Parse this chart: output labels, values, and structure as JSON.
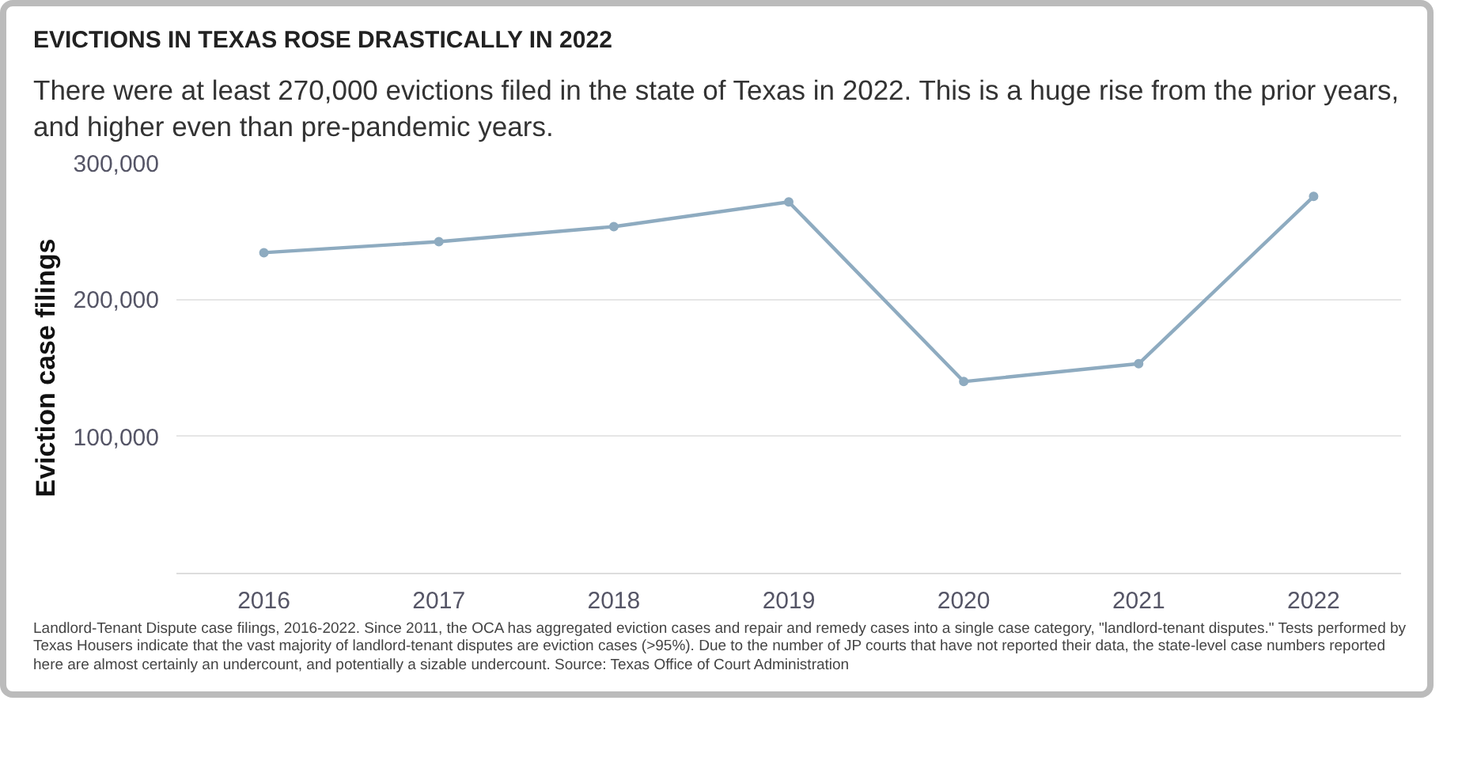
{
  "chart_data": {
    "type": "line",
    "title": "EVICTIONS IN TEXAS ROSE DRASTICALLY IN 2022",
    "subtitle": "There were at least 270,000 evictions filed in the state of Texas in 2022. This is a huge rise from the prior years, and higher even than pre-pandemic years.",
    "ylabel": "Eviction case filings",
    "categories": [
      "2016",
      "2017",
      "2018",
      "2019",
      "2020",
      "2021",
      "2022"
    ],
    "series": [
      {
        "color": "#8eabc0",
        "values": [
          234000,
          242000,
          253000,
          271000,
          140000,
          153000,
          275000
        ]
      }
    ],
    "ylim": [
      0,
      300000
    ],
    "yticks": [
      {
        "value": 0,
        "label": null
      },
      {
        "value": 100000,
        "label": "100,000"
      },
      {
        "value": 200000,
        "label": "200,000"
      },
      {
        "value": 300000,
        "label": "300,000"
      }
    ],
    "grid": "y",
    "marker": "circle",
    "line_style": "solid",
    "annotations": [
      "Landlord-Tenant Dispute case filings, 2016-2022. Since 2011, the OCA has aggregated eviction cases and repair and remedy cases into a single case category, \"landlord-tenant disputes.\" Tests performed by Texas Housers indicate that the vast majority of landlord-tenant disputes are eviction cases (>95%). Due to the number of JP courts that have not reported their data, the state-level case numbers reported here are almost certainly an undercount, and potentially a sizable undercount. Source: Texas Office of Court Administration"
    ]
  }
}
